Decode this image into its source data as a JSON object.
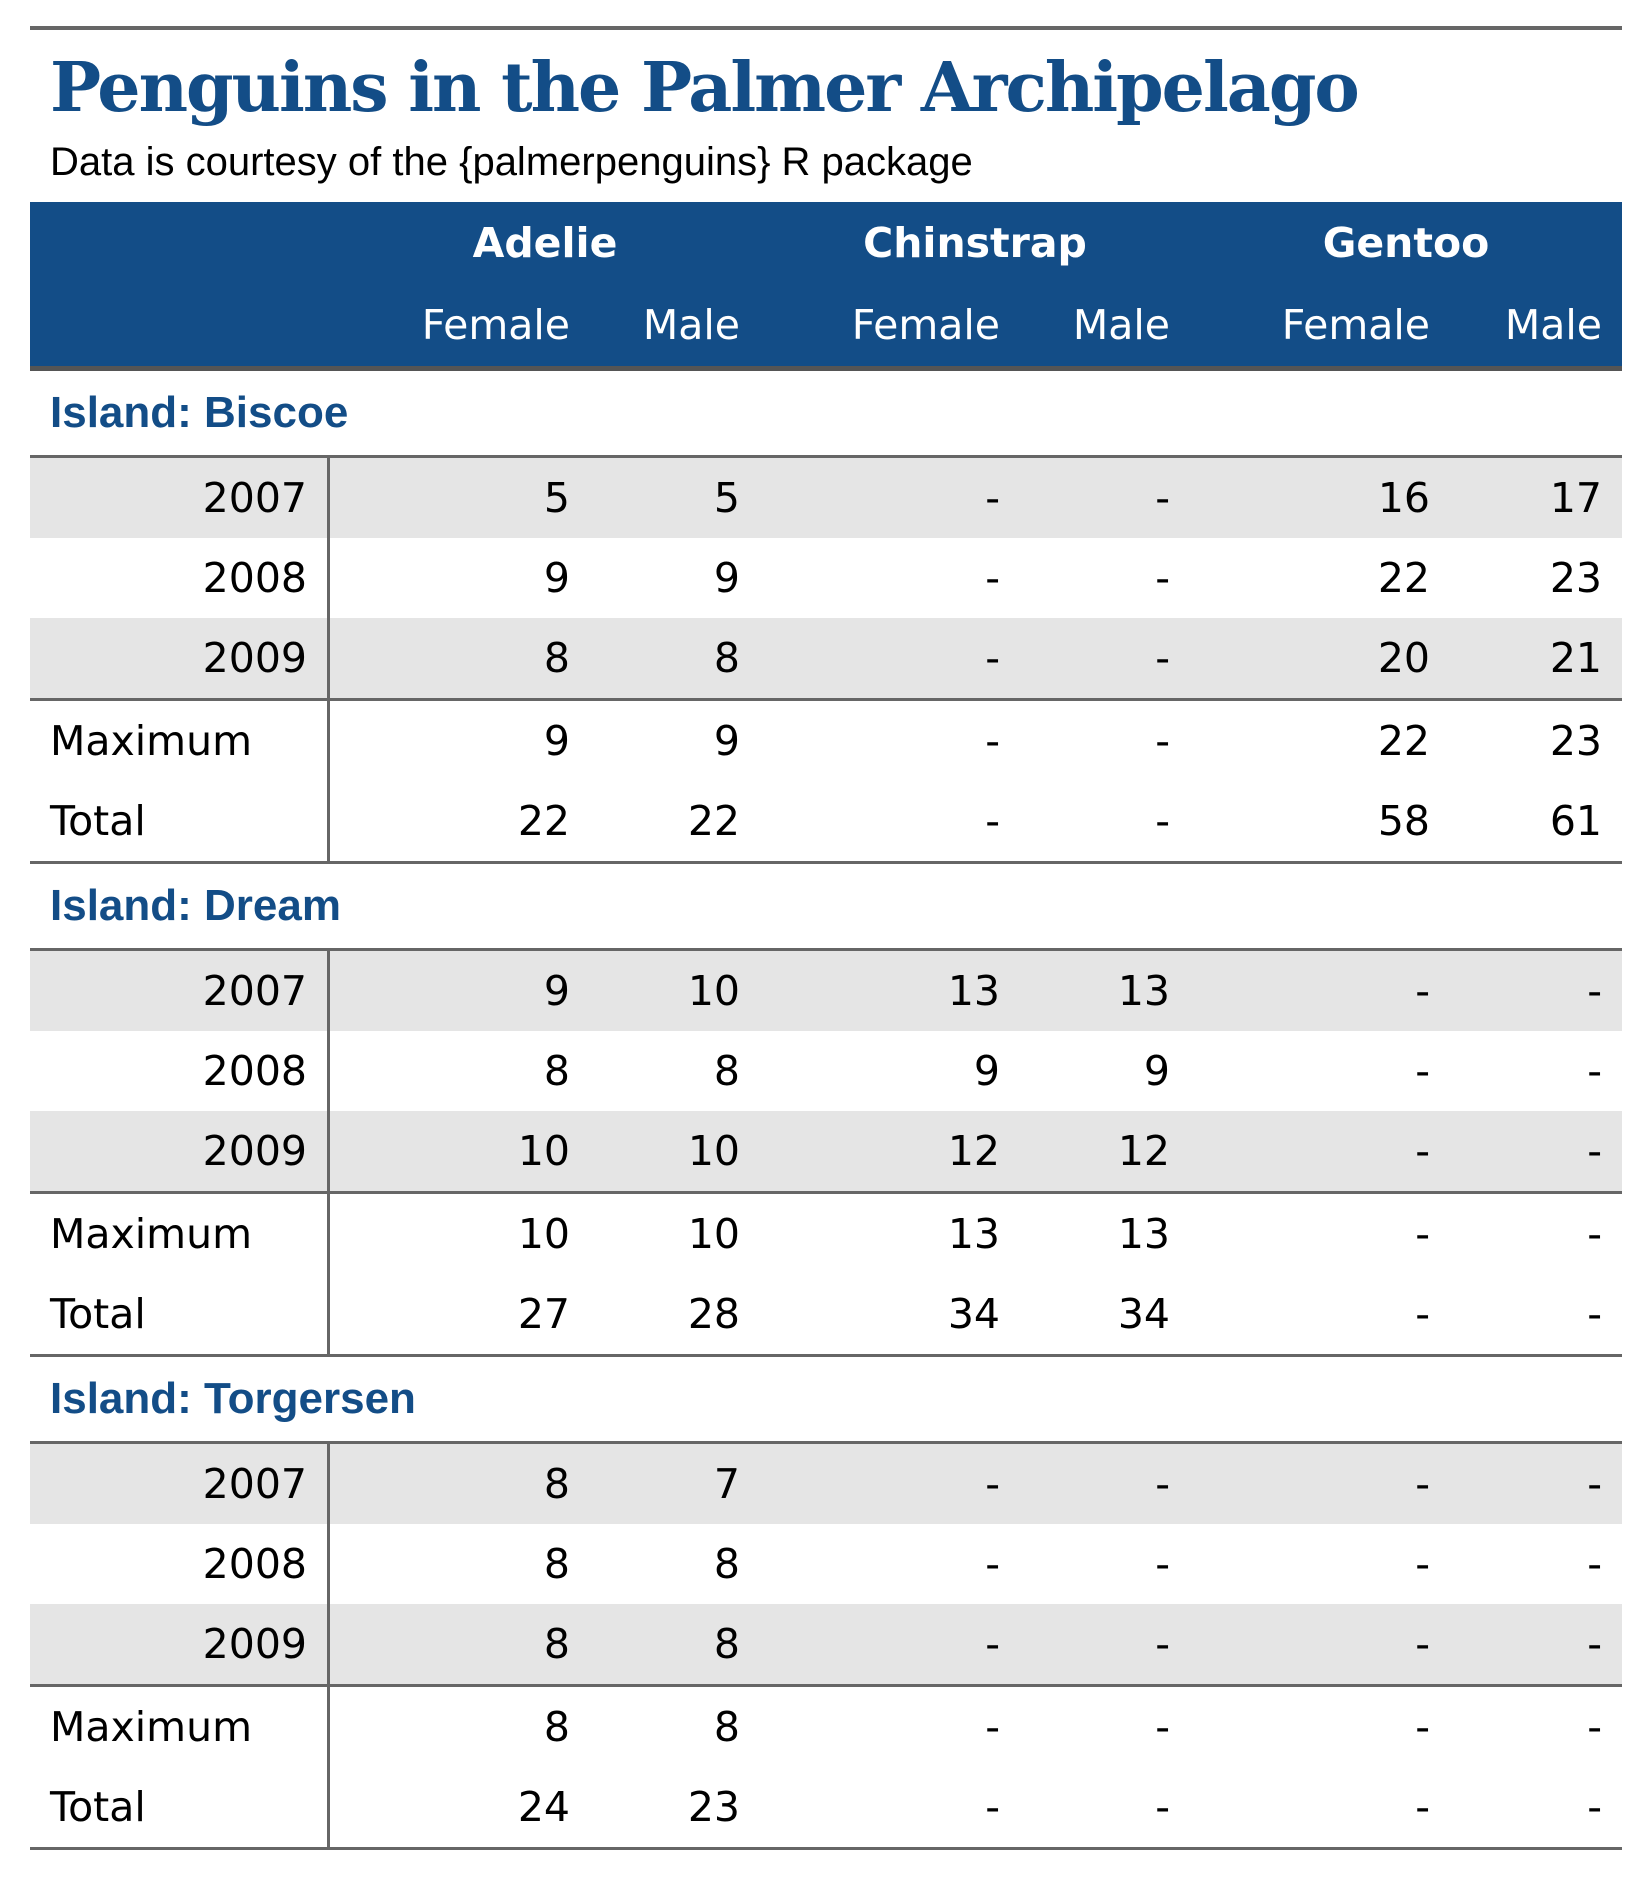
{
  "title": "Penguins in the Palmer Archipelago",
  "subtitle": "Data is courtesy of the {palmerpenguins} R package",
  "header": {
    "species": [
      "Adelie",
      "Chinstrap",
      "Gentoo"
    ],
    "sexes": [
      "Female",
      "Male",
      "Female",
      "Male",
      "Female",
      "Male"
    ]
  },
  "groups": [
    {
      "label": "Island: Biscoe",
      "rows": [
        {
          "label": "2007",
          "values": [
            "5",
            "5",
            "-",
            "-",
            "16",
            "17"
          ]
        },
        {
          "label": "2008",
          "values": [
            "9",
            "9",
            "-",
            "-",
            "22",
            "23"
          ]
        },
        {
          "label": "2009",
          "values": [
            "8",
            "8",
            "-",
            "-",
            "20",
            "21"
          ]
        }
      ],
      "summary": [
        {
          "label": "Maximum",
          "values": [
            "9",
            "9",
            "-",
            "-",
            "22",
            "23"
          ]
        },
        {
          "label": "Total",
          "values": [
            "22",
            "22",
            "-",
            "-",
            "58",
            "61"
          ]
        }
      ]
    },
    {
      "label": "Island: Dream",
      "rows": [
        {
          "label": "2007",
          "values": [
            "9",
            "10",
            "13",
            "13",
            "-",
            "-"
          ]
        },
        {
          "label": "2008",
          "values": [
            "8",
            "8",
            "9",
            "9",
            "-",
            "-"
          ]
        },
        {
          "label": "2009",
          "values": [
            "10",
            "10",
            "12",
            "12",
            "-",
            "-"
          ]
        }
      ],
      "summary": [
        {
          "label": "Maximum",
          "values": [
            "10",
            "10",
            "13",
            "13",
            "-",
            "-"
          ]
        },
        {
          "label": "Total",
          "values": [
            "27",
            "28",
            "34",
            "34",
            "-",
            "-"
          ]
        }
      ]
    },
    {
      "label": "Island: Torgersen",
      "rows": [
        {
          "label": "2007",
          "values": [
            "8",
            "7",
            "-",
            "-",
            "-",
            "-"
          ]
        },
        {
          "label": "2008",
          "values": [
            "8",
            "8",
            "-",
            "-",
            "-",
            "-"
          ]
        },
        {
          "label": "2009",
          "values": [
            "8",
            "8",
            "-",
            "-",
            "-",
            "-"
          ]
        }
      ],
      "summary": [
        {
          "label": "Maximum",
          "values": [
            "8",
            "8",
            "-",
            "-",
            "-",
            "-"
          ]
        },
        {
          "label": "Total",
          "values": [
            "24",
            "23",
            "-",
            "-",
            "-",
            "-"
          ]
        }
      ]
    }
  ]
}
